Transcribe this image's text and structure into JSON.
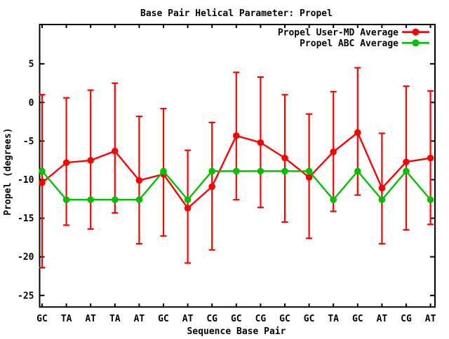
{
  "chart_data": {
    "type": "line",
    "title": "Base Pair Helical Parameter: Propel",
    "xlabel": "Sequence Base Pair",
    "ylabel": "Propel (degrees)",
    "categories": [
      "GC",
      "TA",
      "AT",
      "TA",
      "AT",
      "GC",
      "AT",
      "CG",
      "GC",
      "CG",
      "GC",
      "GC",
      "TA",
      "GC",
      "AT",
      "CG",
      "AT"
    ],
    "yticks": [
      5,
      0,
      -5,
      -10,
      -15,
      -20,
      -25
    ],
    "ylim": [
      -26.5,
      10.1
    ],
    "grid": false,
    "legend_position": "top-right-inside",
    "series": [
      {
        "name": "Propel User-MD Average",
        "color": "#ff0000",
        "marker": "filled-circle",
        "has_error_bars": true,
        "values": [
          -10.4,
          -7.8,
          -7.5,
          -6.3,
          -10.1,
          -9.3,
          -13.7,
          -10.9,
          -4.3,
          -5.2,
          -7.2,
          -9.7,
          -6.4,
          -3.9,
          -11.1,
          -7.7,
          -7.2
        ],
        "err_top": [
          1.0,
          0.6,
          1.6,
          2.5,
          -1.8,
          -0.8,
          -6.2,
          -2.6,
          3.9,
          3.3,
          1.0,
          -1.5,
          1.4,
          4.5,
          -4.0,
          2.1,
          1.5
        ],
        "err_bottom": [
          -21.4,
          -15.9,
          -16.4,
          -14.3,
          -18.3,
          -17.3,
          -20.8,
          -19.1,
          -12.6,
          -13.6,
          -15.5,
          -17.6,
          -14.1,
          -12.0,
          -18.3,
          -16.5,
          -15.8
        ]
      },
      {
        "name": "Propel ABC Average",
        "color": "#00c000",
        "marker": "filled-circle",
        "has_error_bars": false,
        "values": [
          -8.9,
          -12.6,
          -12.6,
          -12.6,
          -12.6,
          -8.9,
          -12.6,
          -8.9,
          -8.9,
          -8.9,
          -8.9,
          -8.9,
          -12.6,
          -8.9,
          -12.6,
          -8.9,
          -12.6
        ]
      }
    ],
    "colors": {
      "background": "#ffffff",
      "frame": "#000000",
      "text": "#000000",
      "series1": "#ff0000",
      "series2": "#00c000"
    }
  }
}
